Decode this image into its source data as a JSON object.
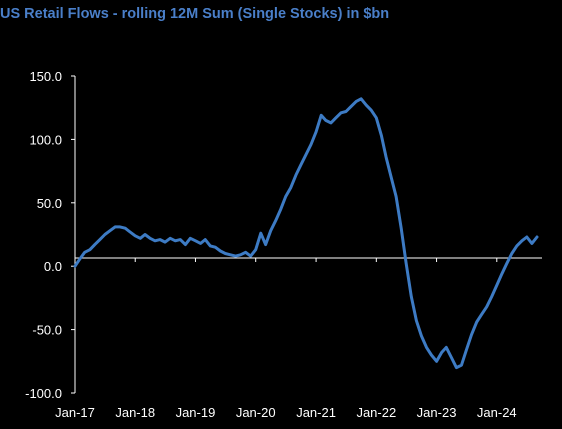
{
  "colors": {
    "background": "#000000",
    "title": "#4a7fc9",
    "line": "#3d7bc4",
    "axis": "#ffffff",
    "text": "#ffffff"
  },
  "chart_data": {
    "type": "line",
    "title": "US Retail Flows - rolling 12M Sum (Single Stocks) in $bn",
    "xlabel": "",
    "ylabel": "",
    "ylim": [
      -100,
      150
    ],
    "xlim": [
      "2017-01-01",
      "2024-10-01"
    ],
    "y_ticks": [
      150,
      100,
      50,
      0,
      -50,
      -100
    ],
    "y_tick_labels": [
      "150.0",
      "100.0",
      "50.0",
      "0.0",
      "-50.0",
      "-100.0"
    ],
    "x_ticks": [
      "2017-01-01",
      "2018-01-01",
      "2019-01-01",
      "2020-01-01",
      "2021-01-01",
      "2022-01-01",
      "2023-01-01",
      "2024-01-01"
    ],
    "x_tick_labels": [
      "Jan-17",
      "Jan-18",
      "Jan-19",
      "Jan-20",
      "Jan-21",
      "Jan-22",
      "Jan-23",
      "Jan-24"
    ],
    "grid": false,
    "legend": "none",
    "series": [
      {
        "x": [
          "2017-01-01",
          "2017-02-01",
          "2017-03-01",
          "2017-04-01",
          "2017-05-01",
          "2017-06-01",
          "2017-07-01",
          "2017-08-01",
          "2017-09-01",
          "2017-10-01",
          "2017-11-01",
          "2017-12-01",
          "2018-01-01",
          "2018-02-01",
          "2018-03-01",
          "2018-04-01",
          "2018-05-01",
          "2018-06-01",
          "2018-07-01",
          "2018-08-01",
          "2018-09-01",
          "2018-10-01",
          "2018-11-01",
          "2018-12-01",
          "2019-01-01",
          "2019-02-01",
          "2019-03-01",
          "2019-04-01",
          "2019-05-01",
          "2019-06-01",
          "2019-07-01",
          "2019-08-01",
          "2019-09-01",
          "2019-10-01",
          "2019-11-01",
          "2019-12-01",
          "2020-01-01",
          "2020-02-01",
          "2020-03-01",
          "2020-04-01",
          "2020-05-01",
          "2020-06-01",
          "2020-07-01",
          "2020-08-01",
          "2020-09-01",
          "2020-10-01",
          "2020-11-01",
          "2020-12-01",
          "2021-01-01",
          "2021-02-01",
          "2021-03-01",
          "2021-04-01",
          "2021-05-01",
          "2021-06-01",
          "2021-07-01",
          "2021-08-01",
          "2021-09-01",
          "2021-10-01",
          "2021-11-01",
          "2021-12-01",
          "2022-01-01",
          "2022-02-01",
          "2022-03-01",
          "2022-04-01",
          "2022-05-01",
          "2022-06-01",
          "2022-07-01",
          "2022-08-01",
          "2022-09-01",
          "2022-10-01",
          "2022-11-01",
          "2022-12-01",
          "2023-01-01",
          "2023-02-01",
          "2023-03-01",
          "2023-04-01",
          "2023-05-01",
          "2023-06-01",
          "2023-07-01",
          "2023-08-01",
          "2023-09-01",
          "2023-10-01",
          "2023-11-01",
          "2023-12-01",
          "2024-01-01",
          "2024-02-01",
          "2024-03-01",
          "2024-04-01",
          "2024-05-01",
          "2024-06-01",
          "2024-07-01",
          "2024-08-01",
          "2024-09-01"
        ],
        "values": [
          0,
          6,
          11,
          13,
          17,
          21,
          25,
          28,
          31,
          31,
          30,
          27,
          24,
          22,
          25,
          22,
          20,
          21,
          19,
          22,
          20,
          21,
          17,
          22,
          20,
          18,
          21,
          16,
          15,
          12,
          10,
          9,
          8,
          9,
          11,
          8,
          13,
          26,
          17,
          28,
          36,
          45,
          55,
          62,
          72,
          80,
          88,
          96,
          106,
          119,
          115,
          113,
          117,
          121,
          122,
          126,
          130,
          132,
          127,
          123,
          117,
          103,
          86,
          70,
          55,
          30,
          2,
          -24,
          -43,
          -55,
          -64,
          -70,
          -75,
          -68,
          -64,
          -72,
          -80,
          -78,
          -66,
          -54,
          -44,
          -38,
          -32,
          -24,
          -15,
          -6,
          2,
          10,
          16,
          20,
          23,
          18,
          23
        ]
      }
    ]
  }
}
